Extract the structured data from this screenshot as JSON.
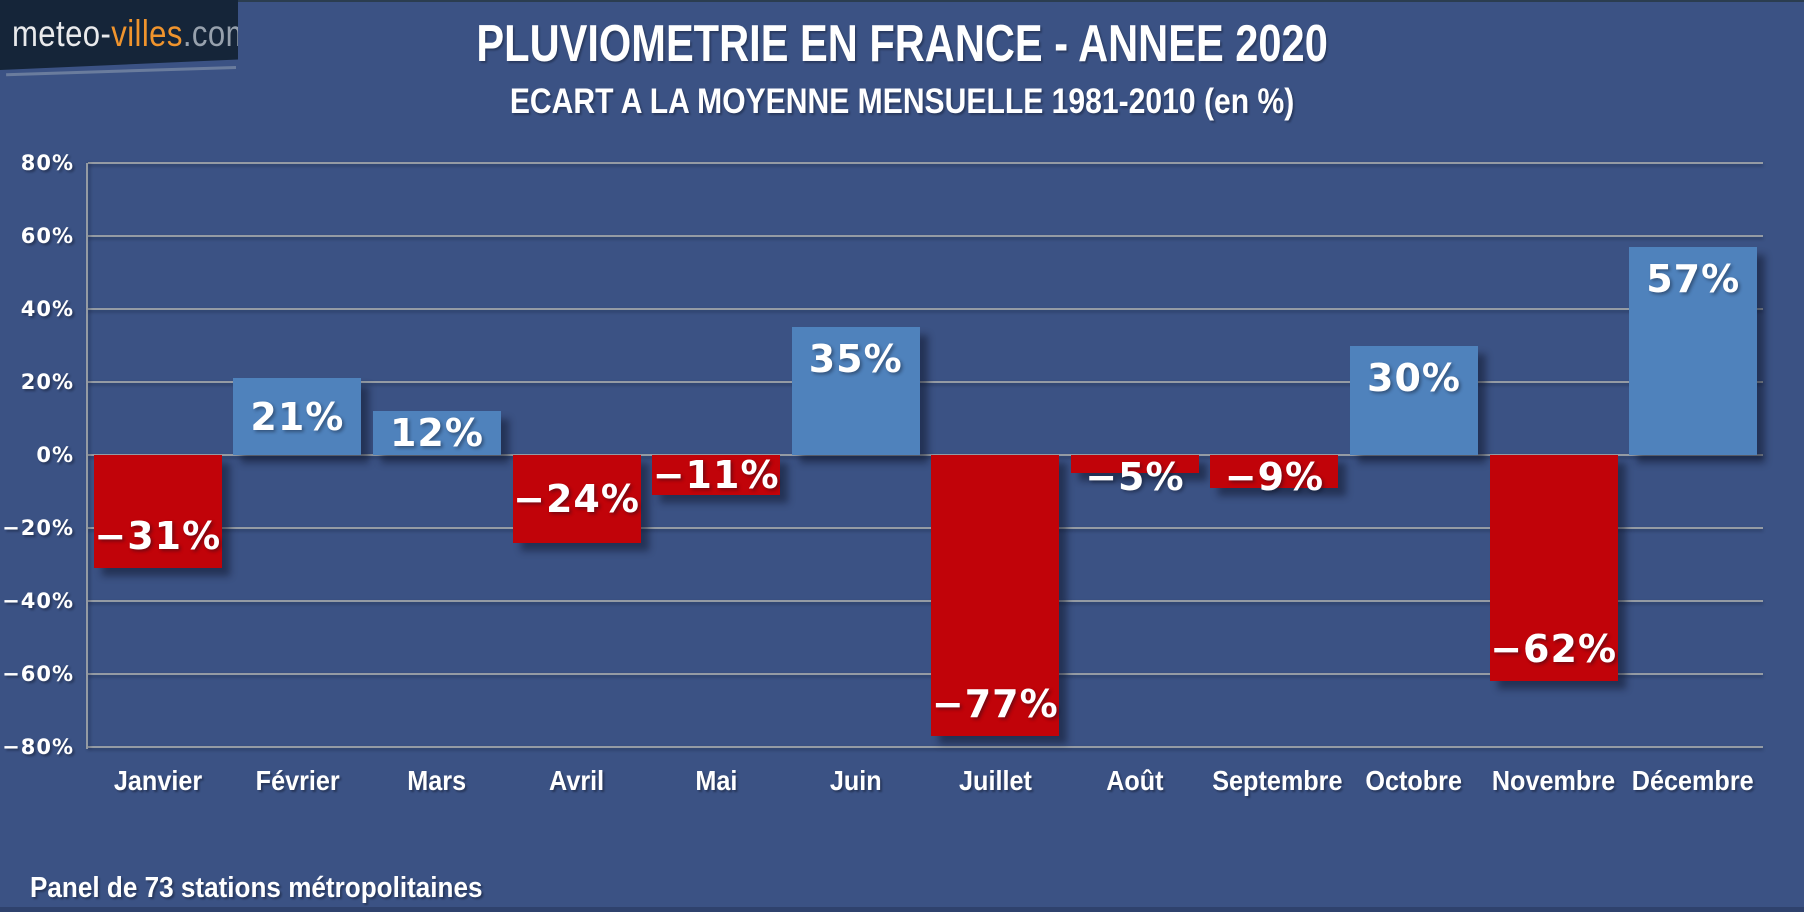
{
  "logo": {
    "part_meteo": "meteo-",
    "part_villes": "villes",
    "part_com": ".com"
  },
  "header": {
    "title": "PLUVIOMETRIE EN FRANCE - ANNEE 2020",
    "subtitle": "ECART A LA MOYENNE MENSUELLE 1981-2010 (en %)"
  },
  "footer": {
    "note": "Panel de 73 stations métropolitaines"
  },
  "chart_data": {
    "type": "bar",
    "title": "PLUVIOMETRIE EN FRANCE - ANNEE 2020",
    "subtitle": "ECART A LA MOYENNE MENSUELLE 1981-2010 (en %)",
    "categories": [
      "Janvier",
      "Février",
      "Mars",
      "Avril",
      "Mai",
      "Juin",
      "Juillet",
      "Août",
      "Septembre",
      "Octobre",
      "Novembre",
      "Décembre"
    ],
    "values": [
      -31,
      21,
      12,
      -24,
      -11,
      35,
      -77,
      -5,
      -9,
      30,
      -62,
      57
    ],
    "bar_labels": [
      "-31%",
      "21%",
      "12%",
      "-24%",
      "-11%",
      "35%",
      "-77%",
      "-5%",
      "-9%",
      "30%",
      "-62%",
      "57%"
    ],
    "xlabel": "",
    "ylabel": "",
    "ylim": [
      -80,
      80
    ],
    "ytick_step": 20,
    "yticks": [
      "80%",
      "60%",
      "40%",
      "20%",
      "0%",
      "-20%",
      "-40%",
      "-60%",
      "-80%"
    ],
    "grid": true,
    "legend": "none",
    "colors": {
      "positive_bar": "#4F82BC",
      "negative_bar": "#C10309",
      "background": "#3B5284",
      "gridline": "#949BA4",
      "label_text": "#FFFFFF",
      "logo_background": "#152539",
      "logo_accent": "#F0942D"
    }
  }
}
